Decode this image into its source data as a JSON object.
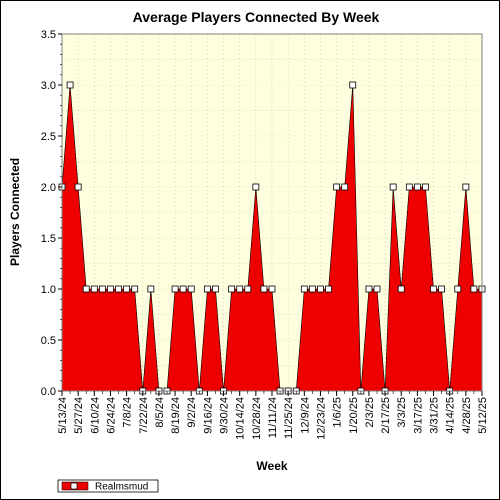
{
  "chart_data": {
    "type": "area",
    "title": "Average Players Connected By Week",
    "xlabel": "Week",
    "ylabel": "Players Connected",
    "ylim": [
      0,
      3.5
    ],
    "yticks": [
      "0.0",
      "0.5",
      "1.0",
      "1.5",
      "2.0",
      "2.5",
      "3.0",
      "3.5"
    ],
    "xtick_labels": [
      "5/13/24",
      "5/27/24",
      "6/10/24",
      "6/24/24",
      "7/8/24",
      "7/22/24",
      "8/5/24",
      "8/19/24",
      "9/2/24",
      "9/16/24",
      "9/30/24",
      "10/14/24",
      "10/28/24",
      "11/11/24",
      "11/25/24",
      "12/9/24",
      "12/23/24",
      "1/6/25",
      "1/20/25",
      "2/3/25",
      "2/17/25",
      "3/3/25",
      "3/17/25",
      "3/31/25",
      "4/14/25",
      "4/28/25",
      "5/12/25"
    ],
    "x": [
      "5/13/24",
      "5/20/24",
      "5/27/24",
      "6/3/24",
      "6/10/24",
      "6/17/24",
      "6/24/24",
      "7/1/24",
      "7/8/24",
      "7/15/24",
      "7/22/24",
      "7/29/24",
      "8/5/24",
      "8/12/24",
      "8/19/24",
      "8/26/24",
      "9/2/24",
      "9/9/24",
      "9/16/24",
      "9/23/24",
      "9/30/24",
      "10/7/24",
      "10/14/24",
      "10/21/24",
      "10/28/24",
      "11/4/24",
      "11/11/24",
      "11/18/24",
      "11/25/24",
      "12/2/24",
      "12/9/24",
      "12/16/24",
      "12/23/24",
      "12/30/24",
      "1/6/25",
      "1/13/25",
      "1/20/25",
      "1/27/25",
      "2/3/25",
      "2/10/25",
      "2/17/25",
      "2/24/25",
      "3/3/25",
      "3/10/25",
      "3/17/25",
      "3/24/25",
      "3/31/25",
      "4/7/25",
      "4/14/25",
      "4/21/25",
      "4/28/25",
      "5/5/25",
      "5/12/25"
    ],
    "series": [
      {
        "name": "Realmsmud",
        "color": "#ee0000",
        "values": [
          2,
          3,
          2,
          1,
          1,
          1,
          1,
          1,
          1,
          1,
          0,
          1,
          0,
          0,
          1,
          1,
          1,
          0,
          1,
          1,
          0,
          1,
          1,
          1,
          2,
          1,
          1,
          0,
          0,
          0,
          1,
          1,
          1,
          1,
          2,
          2,
          3,
          0,
          1,
          1,
          0,
          2,
          1,
          2,
          2,
          2,
          1,
          1,
          0,
          1,
          2,
          1,
          1
        ]
      }
    ],
    "grid": true,
    "legend_position": "bottom-left",
    "plot_background": "#ffffe0",
    "marker_fill": "#ffffff"
  }
}
